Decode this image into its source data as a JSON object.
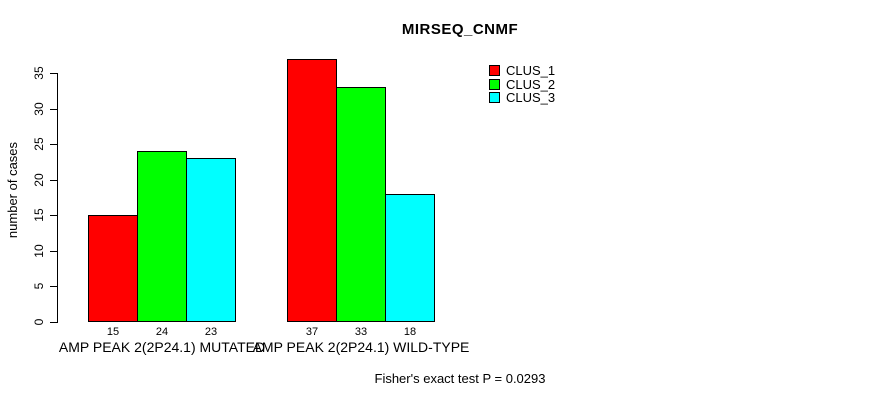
{
  "chart_data": {
    "type": "bar",
    "title": "MIRSEQ_CNMF",
    "xlabel": "",
    "ylabel": "number of cases",
    "categories": [
      "AMP PEAK 2(2P24.1) MUTATED",
      "AMP PEAK 2(2P24.1) WILD-TYPE"
    ],
    "series": [
      {
        "name": "CLUS_1",
        "color": "#FF0000",
        "values": [
          15,
          37
        ]
      },
      {
        "name": "CLUS_2",
        "color": "#00FF00",
        "values": [
          24,
          33
        ]
      },
      {
        "name": "CLUS_3",
        "color": "#00FFFF",
        "values": [
          23,
          18
        ]
      }
    ],
    "bar_value_labels": [
      [
        15,
        24,
        23
      ],
      [
        37,
        33,
        18
      ]
    ],
    "yticks": [
      0,
      5,
      10,
      15,
      20,
      25,
      30,
      35
    ],
    "ylim": [
      0,
      37
    ],
    "grid": false,
    "legend_position": "inside-top-center",
    "annotation": "Fisher's exact test P = 0.0293"
  }
}
